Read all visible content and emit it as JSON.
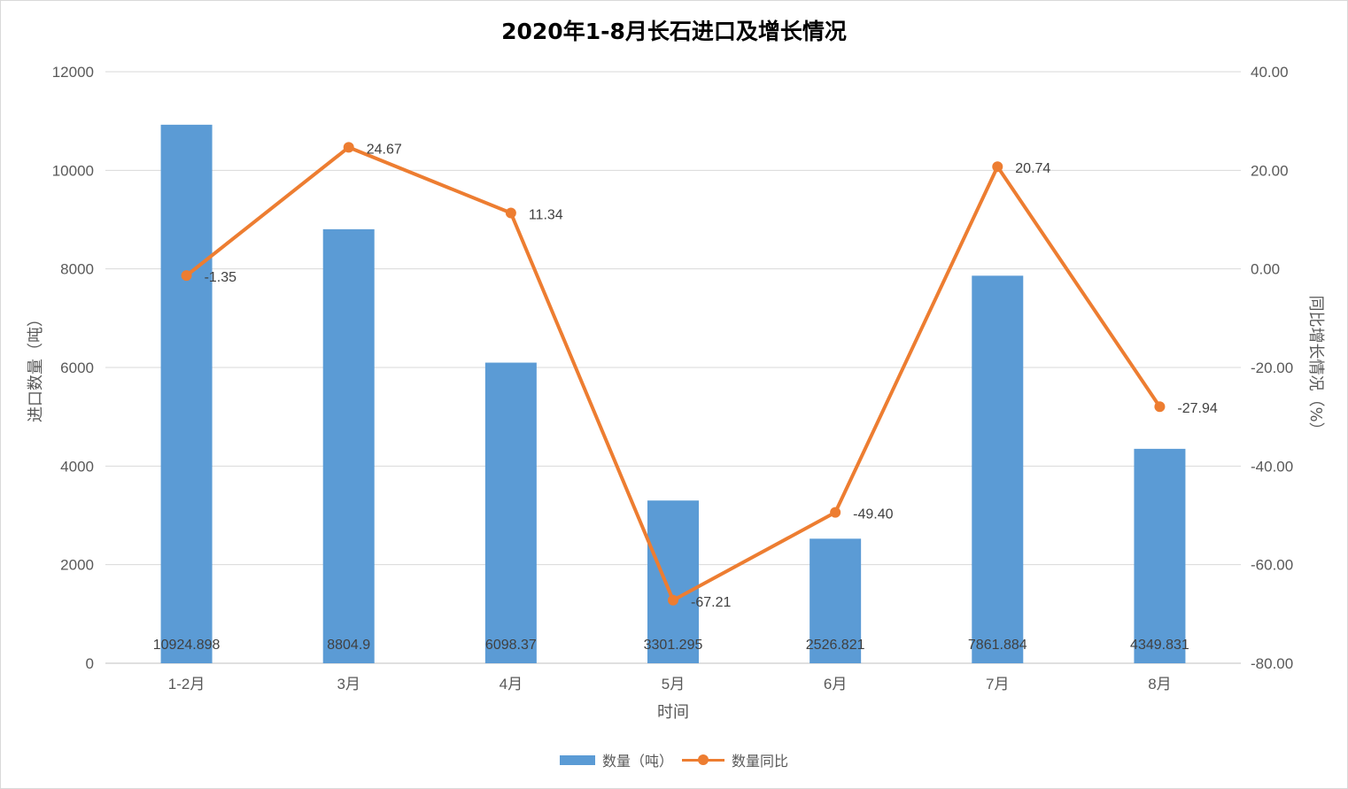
{
  "chart_data": {
    "type": "bar",
    "title": "2020年1-8月长石进口及增长情况",
    "xlabel": "时间",
    "ylabel": "进口数量（吨）",
    "y2label": "同比增长情况（%）",
    "categories": [
      "1-2月",
      "3月",
      "4月",
      "5月",
      "6月",
      "7月",
      "8月"
    ],
    "ylim": [
      0,
      12000
    ],
    "y_ticks": [
      "0",
      "2000",
      "4000",
      "6000",
      "8000",
      "10000",
      "12000"
    ],
    "y2lim": [
      -80,
      40
    ],
    "y2_ticks": [
      "-80.00",
      "-60.00",
      "-40.00",
      "-20.00",
      "0.00",
      "20.00",
      "40.00"
    ],
    "grid": true,
    "legend_position": "bottom",
    "series": [
      {
        "name": "数量（吨）",
        "type": "bar",
        "axis": "left",
        "color": "#5b9bd5",
        "values": [
          10924.898,
          8804.9,
          6098.37,
          3301.295,
          2526.821,
          7861.884,
          4349.831
        ],
        "labels": [
          "10924.898",
          "8804.9",
          "6098.37",
          "3301.295",
          "2526.821",
          "7861.884",
          "4349.831"
        ]
      },
      {
        "name": "数量同比",
        "type": "line",
        "axis": "right",
        "color": "#ed7d31",
        "values": [
          -1.35,
          24.67,
          11.34,
          -67.21,
          -49.4,
          20.74,
          -27.94
        ],
        "labels": [
          "-1.35",
          "24.67",
          "11.34",
          "-67.21",
          "-49.40",
          "20.74",
          "-27.94"
        ]
      }
    ]
  }
}
